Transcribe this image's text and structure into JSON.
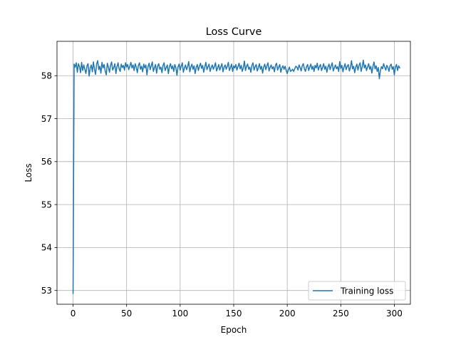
{
  "chart_data": {
    "type": "line",
    "title": "Loss Curve",
    "xlabel": "Epoch",
    "ylabel": "Loss",
    "xlim": [
      -15,
      315
    ],
    "ylim": [
      52.68,
      58.8
    ],
    "x_ticks": [
      0,
      50,
      100,
      150,
      200,
      250,
      300
    ],
    "y_ticks": [
      53,
      54,
      55,
      56,
      57,
      58
    ],
    "grid": true,
    "legend_position": "lower-right",
    "colors": {
      "series": "#1f77b4",
      "grid": "#b0b0b0",
      "axis": "#000000"
    },
    "series": [
      {
        "name": "Training loss",
        "x_start": 0,
        "x_step": 1,
        "values": [
          52.93,
          58.27,
          58.2,
          58.3,
          58.08,
          58.28,
          58.21,
          58.07,
          58.31,
          58.12,
          58.25,
          58.15,
          58.05,
          58.23,
          58.28,
          57.99,
          58.18,
          58.25,
          58.09,
          58.32,
          58.15,
          58.03,
          58.27,
          58.35,
          58.14,
          58.22,
          58.06,
          58.31,
          58.18,
          58.26,
          58.11,
          58.02,
          58.29,
          58.2,
          58.08,
          58.24,
          58.32,
          58.13,
          58.19,
          58.28,
          58.05,
          58.21,
          58.3,
          58.16,
          58.1,
          58.27,
          58.19,
          58.24,
          58.13,
          58.3,
          58.2,
          58.26,
          58.14,
          58.22,
          58.31,
          58.18,
          58.25,
          58.12,
          58.28,
          58.2,
          58.07,
          58.24,
          58.3,
          58.15,
          58.22,
          58.09,
          58.27,
          58.18,
          58.25,
          58.02,
          58.21,
          58.29,
          58.14,
          58.23,
          58.32,
          58.1,
          58.19,
          58.26,
          58.06,
          58.22,
          58.28,
          58.15,
          58.2,
          58.07,
          58.24,
          58.3,
          58.12,
          58.19,
          58.25,
          58.05,
          58.21,
          58.28,
          58.16,
          58.23,
          58.1,
          58.26,
          58.19,
          58.01,
          58.2,
          58.27,
          58.13,
          58.22,
          58.3,
          58.08,
          58.18,
          58.25,
          58.14,
          58.21,
          58.33,
          58.09,
          58.2,
          58.27,
          58.15,
          58.23,
          58.05,
          58.19,
          58.26,
          58.12,
          58.22,
          58.29,
          58.17,
          58.24,
          58.08,
          58.2,
          58.31,
          58.14,
          58.21,
          58.27,
          58.1,
          58.19,
          58.25,
          58.15,
          58.22,
          58.3,
          58.11,
          58.18,
          58.26,
          58.13,
          58.21,
          58.28,
          58.09,
          58.2,
          58.25,
          58.15,
          58.22,
          58.31,
          58.12,
          58.19,
          58.27,
          58.1,
          58.23,
          58.18,
          58.26,
          58.13,
          58.21,
          58.29,
          58.16,
          58.24,
          58.1,
          58.19,
          58.34,
          58.12,
          58.22,
          58.27,
          58.15,
          58.2,
          58.08,
          58.24,
          58.3,
          58.13,
          58.21,
          58.26,
          58.11,
          58.18,
          58.28,
          58.15,
          58.22,
          58.06,
          58.2,
          58.27,
          58.14,
          58.23,
          58.3,
          58.11,
          58.19,
          58.25,
          58.16,
          58.21,
          58.09,
          58.24,
          58.29,
          58.13,
          58.2,
          58.26,
          58.08,
          58.18,
          58.23,
          58.15,
          58.22,
          58.12,
          58.05,
          58.14,
          58.2,
          58.1,
          58.12,
          58.15,
          58.1,
          58.16,
          58.22,
          58.2,
          58.13,
          58.25,
          58.19,
          58.11,
          58.23,
          58.28,
          58.16,
          58.1,
          58.21,
          58.26,
          58.12,
          58.2,
          58.27,
          58.15,
          58.22,
          58.1,
          58.24,
          58.18,
          58.29,
          58.13,
          58.21,
          58.26,
          58.12,
          58.19,
          58.28,
          58.15,
          58.22,
          58.08,
          58.2,
          58.27,
          58.14,
          58.23,
          58.3,
          58.11,
          58.19,
          58.25,
          58.16,
          58.21,
          58.1,
          58.33,
          58.17,
          58.24,
          58.09,
          58.2,
          58.28,
          58.14,
          58.22,
          58.26,
          58.11,
          58.19,
          58.35,
          58.16,
          58.22,
          58.07,
          58.2,
          58.27,
          58.13,
          58.24,
          58.3,
          58.1,
          58.21,
          58.36,
          58.18,
          58.25,
          58.12,
          58.2,
          58.28,
          58.15,
          58.22,
          58.06,
          58.21,
          58.32,
          58.16,
          58.23,
          58.1,
          58.19,
          57.93,
          58.12,
          58.21,
          58.16,
          58.28,
          58.2,
          58.13,
          58.24,
          58.19,
          58.1,
          58.23,
          58.27,
          58.15,
          58.21,
          58.02,
          58.2,
          58.26,
          58.12,
          58.23,
          58.18
        ]
      }
    ]
  }
}
